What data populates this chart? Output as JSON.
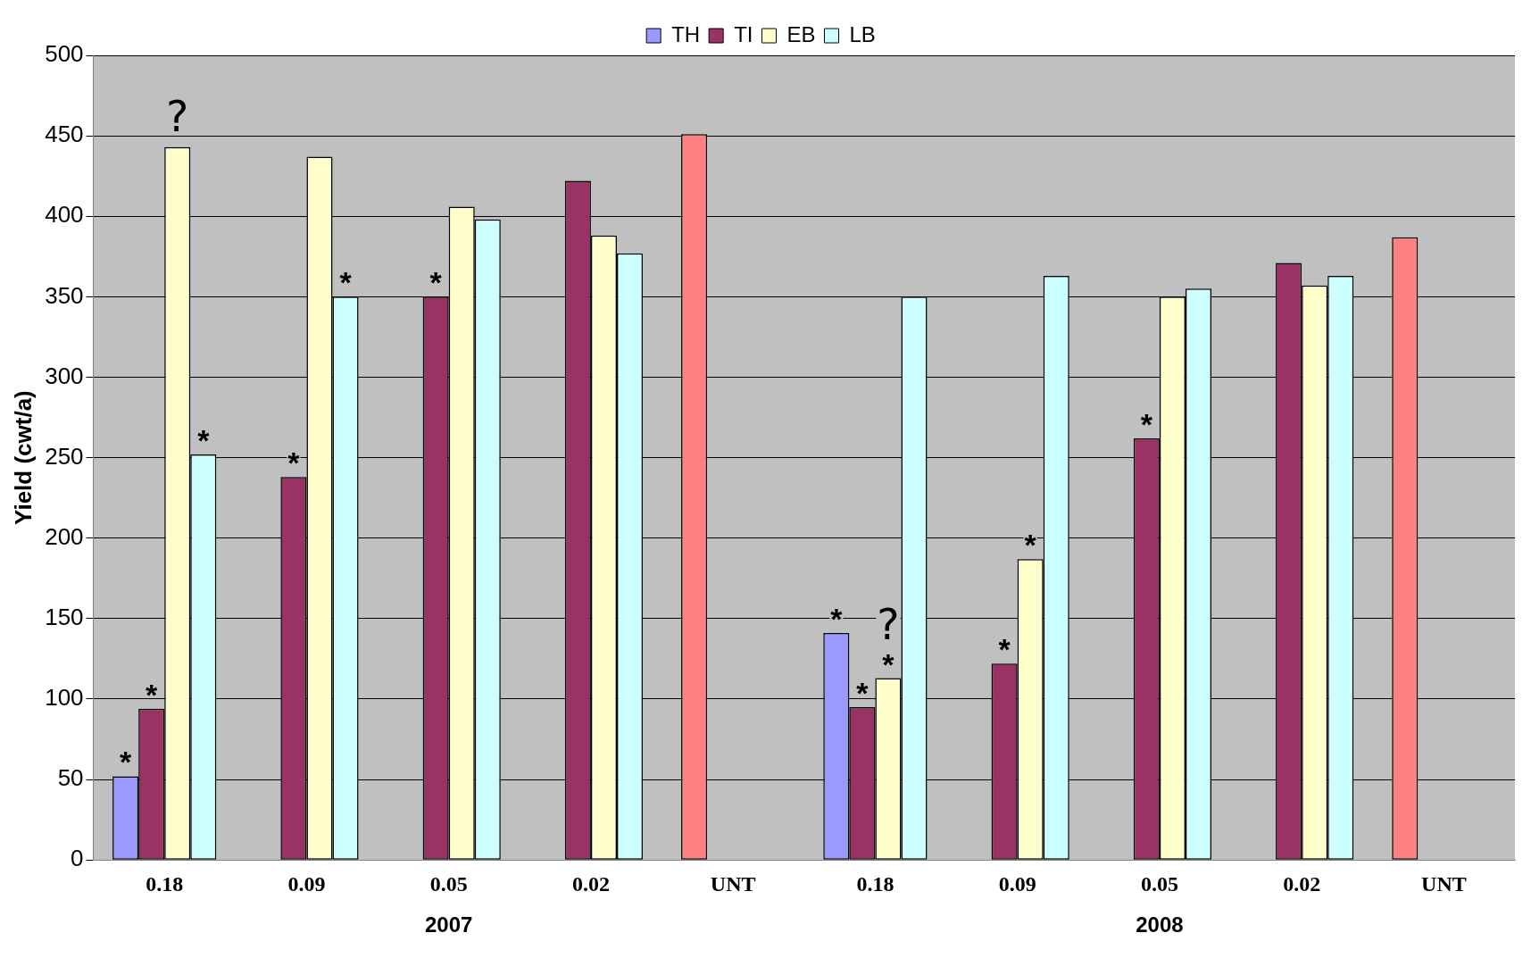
{
  "chart_data": {
    "type": "bar",
    "ylabel": "Yield (cwt/a)",
    "categories": [
      "0.18",
      "0.09",
      "0.05",
      "0.02",
      "UNT",
      "0.18",
      "0.09",
      "0.05",
      "0.02",
      "UNT"
    ],
    "series": [
      {
        "name": "TH",
        "color": "#9999ff",
        "colors": [
          "#9999ff",
          "#9999ff",
          "#9999ff",
          "#9999ff",
          "#ff8080",
          "#9999ff",
          "#9999ff",
          "#9999ff",
          "#9999ff",
          "#ff8080"
        ],
        "values": [
          52,
          null,
          null,
          null,
          451,
          141,
          null,
          null,
          null,
          387
        ],
        "value_labels": [
          "*",
          null,
          null,
          null,
          null,
          "*",
          null,
          null,
          null,
          null
        ]
      },
      {
        "name": "TI",
        "color": "#993366",
        "values": [
          94,
          238,
          350,
          422,
          null,
          95,
          122,
          262,
          371,
          null
        ],
        "value_labels": [
          "*",
          "*",
          "*",
          null,
          null,
          "*",
          "*",
          "*",
          null,
          null
        ]
      },
      {
        "name": "EB",
        "color": "#ffffcc",
        "values": [
          443,
          437,
          406,
          388,
          null,
          113,
          187,
          350,
          357,
          null
        ],
        "value_labels": [
          "?",
          null,
          null,
          null,
          null,
          "?\n*",
          "*",
          null,
          null,
          null
        ]
      },
      {
        "name": "LB",
        "color": "#ccffff",
        "values": [
          252,
          350,
          398,
          377,
          null,
          350,
          363,
          355,
          363,
          null
        ],
        "value_labels": [
          "*",
          "*",
          null,
          null,
          null,
          null,
          null,
          null,
          null,
          null
        ]
      }
    ],
    "annotations": [
      "2007",
      "2008"
    ],
    "ylim": [
      0,
      500
    ],
    "yticks": [
      0,
      50,
      100,
      150,
      200,
      250,
      300,
      350,
      400,
      450,
      500
    ],
    "grid": "y",
    "legend": "top"
  }
}
